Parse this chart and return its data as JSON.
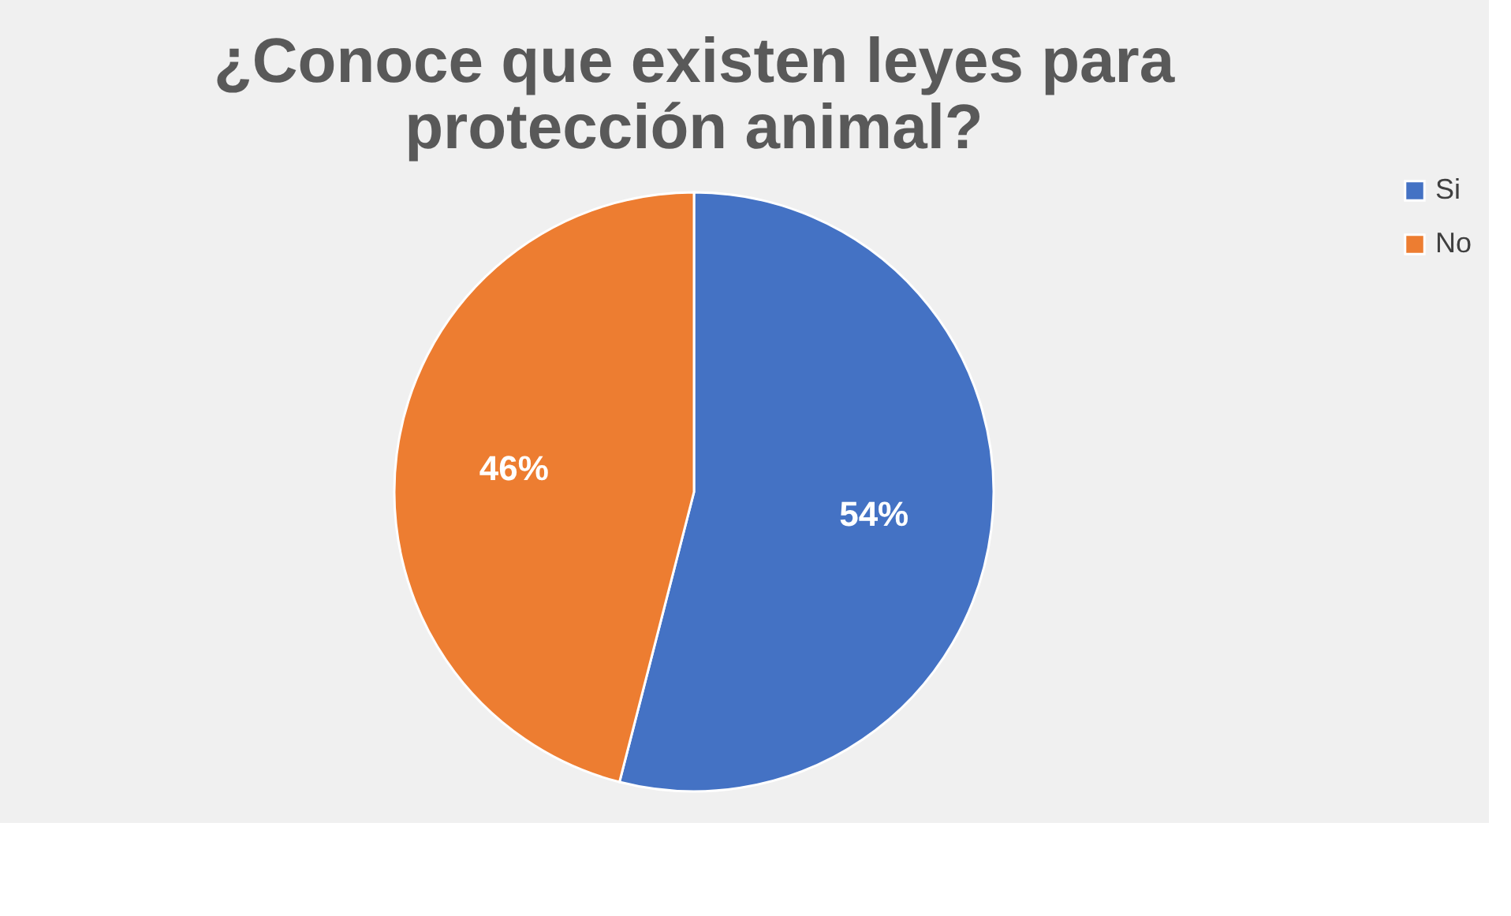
{
  "chart_data": {
    "type": "pie",
    "title": [
      "¿Conoce que existen leyes para",
      "protección animal?"
    ],
    "categories": [
      "Si",
      "No"
    ],
    "values": [
      54,
      46
    ],
    "colors": [
      "#4472c4",
      "#ed7d31"
    ],
    "value_labels": [
      "54%",
      "46%"
    ],
    "legend": "right"
  }
}
